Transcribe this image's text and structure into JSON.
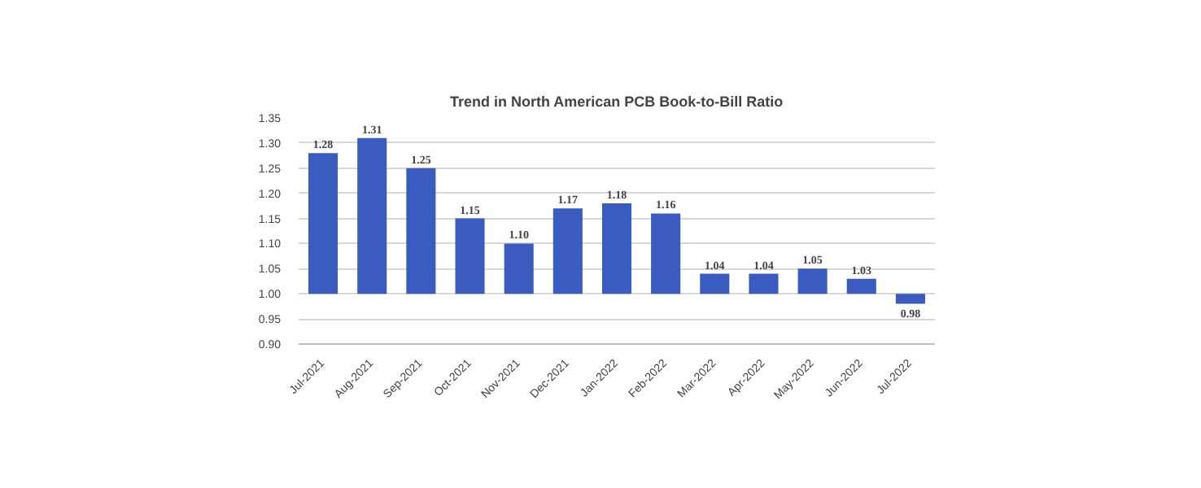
{
  "chart_data": {
    "type": "bar",
    "title": "Trend in North American PCB Book-to-Bill Ratio",
    "categories": [
      "Jul-2021",
      "Aug-2021",
      "Sep-2021",
      "Oct-2021",
      "Nov-2021",
      "Dec-2021",
      "Jan-2022",
      "Feb-2022",
      "Mar-2022",
      "Apr-2022",
      "May-2022",
      "Jun-2022",
      "Jul-2022"
    ],
    "base": [
      1.0,
      1.0,
      1.0,
      1.0,
      1.0,
      1.0,
      1.0,
      1.0,
      1.0,
      1.0,
      1.0,
      1.0,
      1.0
    ],
    "values": [
      0.28,
      0.31,
      0.25,
      0.15,
      0.1,
      0.17,
      0.18,
      0.16,
      0.04,
      0.04,
      0.05,
      0.03,
      -0.02
    ],
    "value_labels": [
      "1.28",
      "1.31",
      "1.25",
      "1.15",
      "1.10",
      "1.17",
      "1.18",
      "1.16",
      "1.04",
      "1.04",
      "1.05",
      "1.03",
      "0.98"
    ],
    "color": "#3a5bbf",
    "ylim": [
      0.9,
      1.35
    ],
    "yticks": [
      {
        "value": 0.9,
        "label": "0.90"
      },
      {
        "value": 0.95,
        "label": "0.95"
      },
      {
        "value": 1.0,
        "label": "1.00"
      },
      {
        "value": 1.05,
        "label": "1.05"
      },
      {
        "value": 1.1,
        "label": "1.10"
      },
      {
        "value": 1.15,
        "label": "1.15"
      },
      {
        "value": 1.2,
        "label": "1.20"
      },
      {
        "value": 1.25,
        "label": "1.25"
      },
      {
        "value": 1.3,
        "label": "1.30"
      },
      {
        "value": 1.35,
        "label": "1.35"
      }
    ],
    "grid": "y"
  }
}
